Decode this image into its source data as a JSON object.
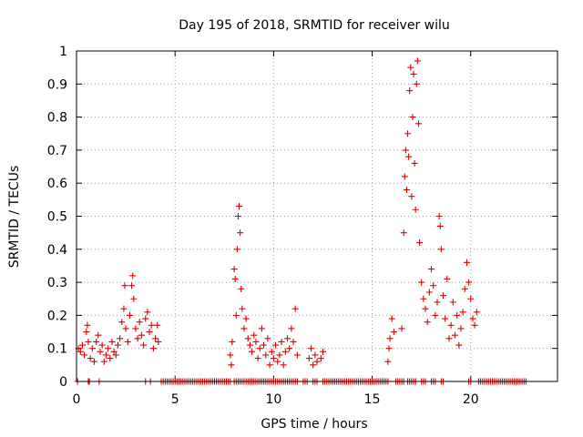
{
  "chart_data": {
    "type": "scatter",
    "title": "Day 195 of 2018, SRMTID for receiver wilu",
    "xlabel": "GPS time / hours",
    "ylabel": "SRMTID / TECUs",
    "xlim": [
      0,
      24.4
    ],
    "ylim": [
      0,
      1
    ],
    "xticks": [
      "0",
      "5",
      "10",
      "15",
      "20"
    ],
    "xtick_values": [
      0,
      5,
      10,
      15,
      20
    ],
    "yticks": [
      "0",
      "0.1",
      "0.2",
      "0.3",
      "0.4",
      "0.5",
      "0.6",
      "0.7",
      "0.8",
      "0.9",
      "1"
    ],
    "ytick_values": [
      0,
      0.1,
      0.2,
      0.3,
      0.4,
      0.5,
      0.6,
      0.7,
      0.8,
      0.9,
      1
    ],
    "grid": true,
    "marker": "+",
    "color": "#e00000",
    "series": [
      {
        "name": "SRMTID",
        "points": [
          [
            0.1,
            0.1
          ],
          [
            0.2,
            0.09
          ],
          [
            0.3,
            0.11
          ],
          [
            0.4,
            0.08
          ],
          [
            0.5,
            0.15
          ],
          [
            0.55,
            0.17
          ],
          [
            0.6,
            0.12
          ],
          [
            0.7,
            0.07
          ],
          [
            0.8,
            0.1
          ],
          [
            0.9,
            0.06
          ],
          [
            1.0,
            0.12
          ],
          [
            1.1,
            0.14
          ],
          [
            1.2,
            0.09
          ],
          [
            1.3,
            0.11
          ],
          [
            1.4,
            0.06
          ],
          [
            1.5,
            0.08
          ],
          [
            1.6,
            0.1
          ],
          [
            1.7,
            0.07
          ],
          [
            1.8,
            0.12
          ],
          [
            1.9,
            0.09
          ],
          [
            2.0,
            0.08
          ],
          [
            2.1,
            0.11
          ],
          [
            2.2,
            0.13
          ],
          [
            2.3,
            0.18
          ],
          [
            2.4,
            0.22
          ],
          [
            2.45,
            0.29
          ],
          [
            2.5,
            0.16
          ],
          [
            2.6,
            0.12
          ],
          [
            2.7,
            0.2
          ],
          [
            2.8,
            0.29
          ],
          [
            2.85,
            0.32
          ],
          [
            2.9,
            0.25
          ],
          [
            3.0,
            0.16
          ],
          [
            3.1,
            0.13
          ],
          [
            3.2,
            0.18
          ],
          [
            3.3,
            0.14
          ],
          [
            3.4,
            0.11
          ],
          [
            3.5,
            0.19
          ],
          [
            3.6,
            0.21
          ],
          [
            3.7,
            0.15
          ],
          [
            3.8,
            0.17
          ],
          [
            3.9,
            0.1
          ],
          [
            4.0,
            0.13
          ],
          [
            4.1,
            0.17
          ],
          [
            4.15,
            0.12
          ],
          [
            7.8,
            0.08
          ],
          [
            7.85,
            0.05
          ],
          [
            7.9,
            0.12
          ],
          [
            8.0,
            0.34
          ],
          [
            8.05,
            0.31
          ],
          [
            8.1,
            0.2
          ],
          [
            8.15,
            0.4
          ],
          [
            8.2,
            0.5
          ],
          [
            8.25,
            0.53
          ],
          [
            8.3,
            0.45
          ],
          [
            8.35,
            0.28
          ],
          [
            8.4,
            0.22
          ],
          [
            8.5,
            0.16
          ],
          [
            8.6,
            0.19
          ],
          [
            8.7,
            0.13
          ],
          [
            8.8,
            0.11
          ],
          [
            8.9,
            0.09
          ],
          [
            9.0,
            0.14
          ],
          [
            9.1,
            0.12
          ],
          [
            9.2,
            0.07
          ],
          [
            9.3,
            0.1
          ],
          [
            9.4,
            0.16
          ],
          [
            9.5,
            0.11
          ],
          [
            9.6,
            0.08
          ],
          [
            9.7,
            0.13
          ],
          [
            9.8,
            0.05
          ],
          [
            9.9,
            0.09
          ],
          [
            10.0,
            0.07
          ],
          [
            10.1,
            0.11
          ],
          [
            10.2,
            0.06
          ],
          [
            10.3,
            0.08
          ],
          [
            10.4,
            0.12
          ],
          [
            10.5,
            0.05
          ],
          [
            10.6,
            0.09
          ],
          [
            10.7,
            0.13
          ],
          [
            10.8,
            0.1
          ],
          [
            10.9,
            0.16
          ],
          [
            11.0,
            0.12
          ],
          [
            11.1,
            0.22
          ],
          [
            11.2,
            0.08
          ],
          [
            11.8,
            0.07
          ],
          [
            11.9,
            0.1
          ],
          [
            12.0,
            0.05
          ],
          [
            12.1,
            0.08
          ],
          [
            12.2,
            0.06
          ],
          [
            12.4,
            0.07
          ],
          [
            12.5,
            0.09
          ],
          [
            15.8,
            0.06
          ],
          [
            15.85,
            0.1
          ],
          [
            15.9,
            0.13
          ],
          [
            16.0,
            0.19
          ],
          [
            16.1,
            0.15
          ],
          [
            16.5,
            0.16
          ],
          [
            16.6,
            0.45
          ],
          [
            16.65,
            0.62
          ],
          [
            16.7,
            0.7
          ],
          [
            16.75,
            0.58
          ],
          [
            16.8,
            0.75
          ],
          [
            16.85,
            0.68
          ],
          [
            16.9,
            0.88
          ],
          [
            16.95,
            0.95
          ],
          [
            17.0,
            0.56
          ],
          [
            17.05,
            0.8
          ],
          [
            17.1,
            0.93
          ],
          [
            17.15,
            0.66
          ],
          [
            17.2,
            0.52
          ],
          [
            17.25,
            0.9
          ],
          [
            17.3,
            0.97
          ],
          [
            17.35,
            0.78
          ],
          [
            17.4,
            0.42
          ],
          [
            17.5,
            0.3
          ],
          [
            17.6,
            0.25
          ],
          [
            17.7,
            0.22
          ],
          [
            17.8,
            0.18
          ],
          [
            17.9,
            0.27
          ],
          [
            18.0,
            0.34
          ],
          [
            18.1,
            0.29
          ],
          [
            18.2,
            0.2
          ],
          [
            18.3,
            0.24
          ],
          [
            18.4,
            0.5
          ],
          [
            18.45,
            0.47
          ],
          [
            18.5,
            0.4
          ],
          [
            18.6,
            0.26
          ],
          [
            18.7,
            0.19
          ],
          [
            18.8,
            0.31
          ],
          [
            18.9,
            0.13
          ],
          [
            19.0,
            0.17
          ],
          [
            19.1,
            0.24
          ],
          [
            19.2,
            0.14
          ],
          [
            19.3,
            0.2
          ],
          [
            19.4,
            0.11
          ],
          [
            19.5,
            0.16
          ],
          [
            19.6,
            0.21
          ],
          [
            19.7,
            0.28
          ],
          [
            19.8,
            0.36
          ],
          [
            19.9,
            0.3
          ],
          [
            20.0,
            0.25
          ],
          [
            20.1,
            0.19
          ],
          [
            20.2,
            0.17
          ],
          [
            20.3,
            0.21
          ]
        ]
      },
      {
        "name": "zero",
        "x_start": 4.3,
        "x_end": 22.8,
        "x_step": 0.1,
        "y": 0,
        "gaps": [
          [
            7.8,
            8.0
          ],
          [
            11.2,
            11.45
          ],
          [
            11.75,
            11.95
          ],
          [
            12.25,
            12.45
          ],
          [
            15.85,
            16.15
          ],
          [
            16.6,
            16.75
          ],
          [
            17.2,
            17.5
          ],
          [
            17.75,
            18.0
          ],
          [
            18.25,
            18.45
          ],
          [
            18.6,
            19.9
          ],
          [
            20.0,
            20.35
          ]
        ],
        "extra_x": [
          0.05,
          0.6,
          0.65,
          1.15,
          3.5,
          3.75
        ]
      }
    ]
  }
}
